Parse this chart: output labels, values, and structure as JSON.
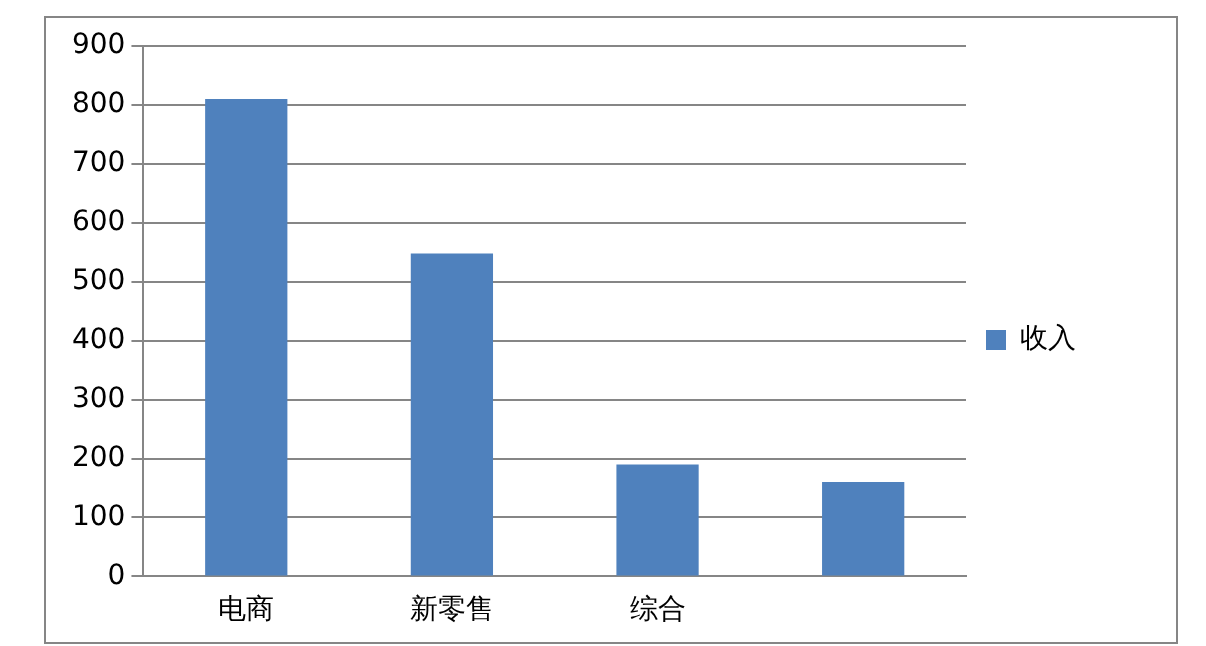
{
  "chart_data": {
    "type": "bar",
    "categories": [
      "电商",
      "新零售",
      "综合",
      null
    ],
    "series": [
      {
        "name": "收入",
        "color": "#4f81bd",
        "values": [
          810,
          548,
          190,
          160
        ]
      }
    ],
    "ylim": [
      0,
      900
    ],
    "yticks": [
      0,
      100,
      200,
      300,
      400,
      500,
      600,
      700,
      800,
      900
    ],
    "grid": "y",
    "legend": "right"
  }
}
